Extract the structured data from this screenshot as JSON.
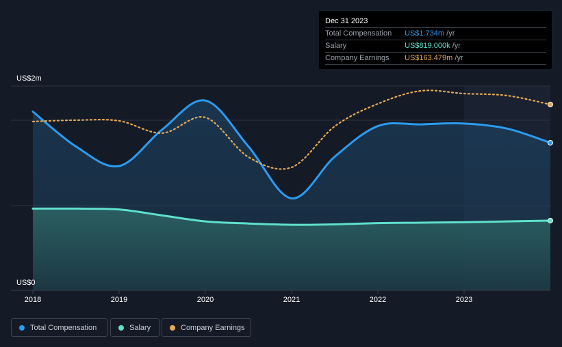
{
  "tooltip": {
    "date": "Dec 31 2023",
    "rows": [
      {
        "label": "Total Compensation",
        "value": "US$1.734m",
        "unit": " /yr",
        "color": "#2b9cf0"
      },
      {
        "label": "Salary",
        "value": "US$819.000k",
        "unit": " /yr",
        "color": "#5fe0cc"
      },
      {
        "label": "Company Earnings",
        "value": "US$163.479m",
        "unit": " /yr",
        "color": "#e8a955"
      }
    ]
  },
  "legend": [
    {
      "label": "Total Compensation",
      "color": "#2b9cf0"
    },
    {
      "label": "Salary",
      "color": "#5fe0cc"
    },
    {
      "label": "Company Earnings",
      "color": "#e8a955"
    }
  ],
  "chart_data": {
    "type": "area",
    "x": [
      2018,
      2018.5,
      2019,
      2019.5,
      2020,
      2020.5,
      2021,
      2021.5,
      2022,
      2022.5,
      2023,
      2023.5,
      2024
    ],
    "xticks": [
      "2018",
      "2019",
      "2020",
      "2021",
      "2022",
      "2023"
    ],
    "ylabels": {
      "top": "US$2m",
      "bottom": "US$0"
    },
    "ylim": [
      0,
      2.4
    ],
    "earnings_ylim": [
      0,
      179.7
    ],
    "highlight_from": 2023,
    "series": [
      {
        "name": "Total Compensation",
        "unit": "US$m",
        "color": "#2b9cf0",
        "values": [
          2.1,
          1.69,
          1.46,
          1.89,
          2.23,
          1.69,
          1.08,
          1.57,
          1.93,
          1.95,
          1.96,
          1.9,
          1.734
        ]
      },
      {
        "name": "Salary",
        "unit": "US$m",
        "color": "#5fe0cc",
        "values": [
          0.96,
          0.96,
          0.95,
          0.88,
          0.81,
          0.785,
          0.77,
          0.775,
          0.79,
          0.795,
          0.8,
          0.81,
          0.819
        ]
      },
      {
        "name": "Company Earnings",
        "unit": "US$m",
        "color": "#e8a955",
        "axis": "secondary",
        "values": [
          148.5,
          149.7,
          149.1,
          138.3,
          152.1,
          117.2,
          108.2,
          144.3,
          164.1,
          175.5,
          173.1,
          171.3,
          163.479
        ]
      }
    ]
  }
}
